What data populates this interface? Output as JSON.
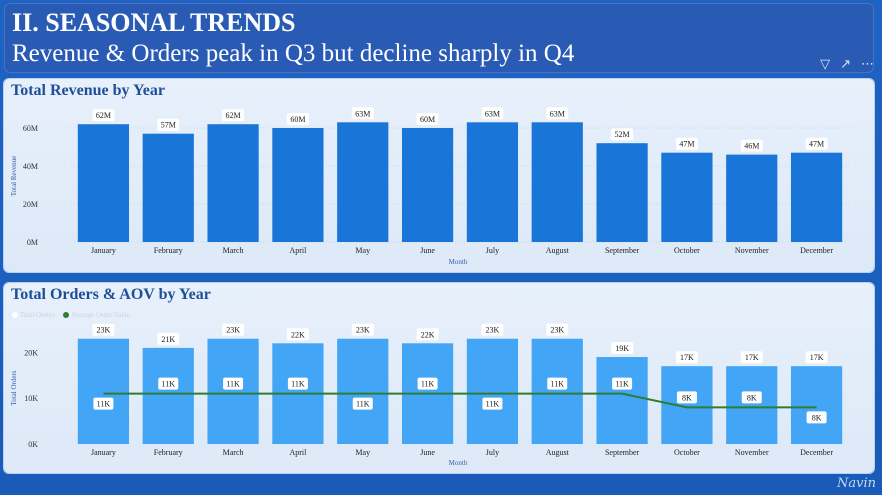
{
  "header": {
    "title": "II. SEASONAL TRENDS",
    "subtitle": "Revenue & Orders peak in Q3 but decline sharply in Q4",
    "icons": [
      "filter-icon",
      "expand-icon",
      "more-icon"
    ]
  },
  "colors": {
    "revenue_bar": "#1976d8",
    "orders_bar": "#42a5f5",
    "aov_line": "#2e7d32",
    "title": "#1f4e99"
  },
  "chart_data": [
    {
      "type": "bar",
      "title": "Total Revenue by Year",
      "xlabel": "Month",
      "ylabel": "Total Revenue",
      "categories": [
        "January",
        "February",
        "March",
        "April",
        "May",
        "June",
        "July",
        "August",
        "September",
        "October",
        "November",
        "December"
      ],
      "values": [
        62,
        57,
        62,
        60,
        63,
        60,
        63,
        63,
        52,
        47,
        46,
        47
      ],
      "data_labels": [
        "62M",
        "57M",
        "62M",
        "60M",
        "63M",
        "60M",
        "63M",
        "63M",
        "52M",
        "47M",
        "46M",
        "47M"
      ],
      "yticks": [
        "0M",
        "20M",
        "40M",
        "60M"
      ],
      "ylim": [
        0,
        70
      ],
      "unit": "M"
    },
    {
      "type": "bar",
      "title": "Total Orders & AOV by Year",
      "xlabel": "Month",
      "ylabel": "Total Orders",
      "categories": [
        "January",
        "February",
        "March",
        "April",
        "May",
        "June",
        "July",
        "August",
        "September",
        "October",
        "November",
        "December"
      ],
      "series": [
        {
          "name": "Total Orders",
          "type": "bar",
          "values": [
            23,
            21,
            23,
            22,
            23,
            22,
            23,
            23,
            19,
            17,
            17,
            17
          ],
          "data_labels": [
            "23K",
            "21K",
            "23K",
            "22K",
            "23K",
            "22K",
            "23K",
            "23K",
            "19K",
            "17K",
            "17K",
            "17K"
          ]
        },
        {
          "name": "Average Order Value",
          "type": "line",
          "values": [
            11,
            11,
            11,
            11,
            11,
            11,
            11,
            11,
            11,
            8,
            8,
            8
          ],
          "data_labels": [
            "11K",
            "11K",
            "11K",
            "11K",
            "11K",
            "11K",
            "11K",
            "11K",
            "11K",
            "8K",
            "8K",
            "8K"
          ]
        }
      ],
      "yticks": [
        "0K",
        "10K",
        "20K"
      ],
      "ylim": [
        0,
        26
      ],
      "legend": "top-left"
    }
  ],
  "signature": "Navin"
}
